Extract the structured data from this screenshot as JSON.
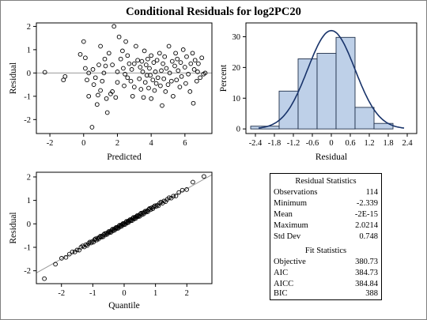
{
  "title": "Conditional Residuals for log2PC20",
  "colors": {
    "hist_fill": "#bed0e8",
    "hist_stroke": "#1f2f4a",
    "curve": "#18336a",
    "ref_line": "#999999"
  },
  "chart_data": [
    {
      "type": "scatter",
      "xlabel": "Predicted",
      "ylabel": "Residual",
      "xlim": [
        -2.8,
        7.6
      ],
      "ylim": [
        -2.6,
        2.15
      ],
      "xticks": [
        "-2",
        "0",
        "2",
        "4",
        "6"
      ],
      "yticks": [
        "-2",
        "-1",
        "0",
        "1",
        "2"
      ],
      "reference_line_y": 0,
      "points": [
        [
          -2.3,
          0.03
        ],
        [
          -1.2,
          -0.3
        ],
        [
          -1.1,
          -0.15
        ],
        [
          -0.2,
          0.8
        ],
        [
          0.0,
          1.35
        ],
        [
          0.1,
          0.65
        ],
        [
          0.1,
          0.2
        ],
        [
          0.2,
          -0.3
        ],
        [
          0.3,
          0.0
        ],
        [
          0.3,
          -1.0
        ],
        [
          0.5,
          -2.33
        ],
        [
          0.55,
          0.15
        ],
        [
          0.6,
          -0.5
        ],
        [
          0.7,
          -0.2
        ],
        [
          0.8,
          -1.35
        ],
        [
          0.85,
          -0.95
        ],
        [
          0.9,
          0.35
        ],
        [
          1.0,
          1.15
        ],
        [
          1.0,
          -0.75
        ],
        [
          1.1,
          -0.35
        ],
        [
          1.2,
          0.0
        ],
        [
          1.3,
          0.3
        ],
        [
          1.35,
          -1.1
        ],
        [
          1.4,
          -1.7
        ],
        [
          1.5,
          0.85
        ],
        [
          1.6,
          -0.9
        ],
        [
          1.7,
          -0.8
        ],
        [
          1.7,
          0.35
        ],
        [
          1.8,
          2.0
        ],
        [
          1.9,
          -1.05
        ],
        [
          2.0,
          0.05
        ],
        [
          2.0,
          -0.4
        ],
        [
          2.1,
          1.55
        ],
        [
          2.2,
          0.6
        ],
        [
          2.3,
          0.95
        ],
        [
          2.35,
          0.2
        ],
        [
          2.4,
          -0.55
        ],
        [
          2.5,
          1.35
        ],
        [
          2.6,
          -0.2
        ],
        [
          2.6,
          0.75
        ],
        [
          2.7,
          0.4
        ],
        [
          2.8,
          -0.35
        ],
        [
          2.85,
          0.15
        ],
        [
          2.9,
          -1.0
        ],
        [
          3.0,
          0.4
        ],
        [
          3.0,
          -0.6
        ],
        [
          3.1,
          1.15
        ],
        [
          3.2,
          0.55
        ],
        [
          3.3,
          -0.25
        ],
        [
          3.35,
          0.25
        ],
        [
          3.4,
          -0.7
        ],
        [
          3.45,
          0.5
        ],
        [
          3.5,
          0.05
        ],
        [
          3.55,
          -1.05
        ],
        [
          3.6,
          0.95
        ],
        [
          3.65,
          -0.4
        ],
        [
          3.7,
          0.35
        ],
        [
          3.75,
          -0.1
        ],
        [
          3.8,
          0.6
        ],
        [
          3.85,
          -0.65
        ],
        [
          3.9,
          0.2
        ],
        [
          4.0,
          -1.1
        ],
        [
          4.0,
          0.75
        ],
        [
          4.1,
          -0.3
        ],
        [
          4.15,
          0.45
        ],
        [
          4.2,
          -0.75
        ],
        [
          4.25,
          0.05
        ],
        [
          4.3,
          -0.45
        ],
        [
          4.35,
          0.55
        ],
        [
          4.4,
          -0.2
        ],
        [
          4.5,
          0.85
        ],
        [
          4.55,
          -0.55
        ],
        [
          4.6,
          0.1
        ],
        [
          4.65,
          -1.4
        ],
        [
          4.7,
          0.4
        ],
        [
          4.75,
          -0.25
        ],
        [
          4.8,
          0.7
        ],
        [
          4.85,
          -0.8
        ],
        [
          4.9,
          0.2
        ],
        [
          5.0,
          -0.5
        ],
        [
          5.05,
          1.15
        ],
        [
          5.1,
          0.0
        ],
        [
          5.2,
          -0.35
        ],
        [
          5.25,
          0.5
        ],
        [
          5.3,
          -1.0
        ],
        [
          5.4,
          0.3
        ],
        [
          5.45,
          0.85
        ],
        [
          5.5,
          -0.3
        ],
        [
          5.6,
          0.1
        ],
        [
          5.7,
          -0.6
        ],
        [
          5.75,
          0.45
        ],
        [
          5.8,
          -0.15
        ],
        [
          5.9,
          1.0
        ],
        [
          6.0,
          0.25
        ],
        [
          6.05,
          -0.45
        ],
        [
          6.1,
          0.7
        ],
        [
          6.2,
          -0.05
        ],
        [
          6.3,
          -0.8
        ],
        [
          6.35,
          0.4
        ],
        [
          6.45,
          0.85
        ],
        [
          6.5,
          -1.3
        ],
        [
          6.55,
          0.15
        ],
        [
          6.6,
          0.55
        ],
        [
          6.7,
          -0.35
        ],
        [
          6.75,
          0.05
        ],
        [
          6.8,
          0.4
        ],
        [
          6.9,
          -0.2
        ],
        [
          7.0,
          0.65
        ],
        [
          7.1,
          -0.05
        ],
        [
          7.2,
          0.0
        ],
        [
          1.25,
          0.6
        ],
        [
          2.45,
          -0.05
        ],
        [
          3.95,
          -0.1
        ],
        [
          5.55,
          0.6
        ]
      ]
    },
    {
      "type": "bar",
      "xlabel": "Residual",
      "ylabel": "Percent",
      "xlim": [
        -2.7,
        2.7
      ],
      "ylim": [
        -1.5,
        34.5
      ],
      "xticks": [
        "-2.4",
        "-1.8",
        "-1.2",
        "-0.6",
        "0",
        "0.6",
        "1.2",
        "1.8",
        "2.4"
      ],
      "xtick_values": [
        -2.4,
        -1.8,
        -1.2,
        -0.6,
        0,
        0.6,
        1.2,
        1.8,
        2.4
      ],
      "yticks": [
        "0",
        "10",
        "20",
        "30"
      ],
      "ytick_values": [
        0,
        10,
        20,
        30
      ],
      "bin_edges": [
        -2.55,
        -1.65,
        -1.05,
        -0.45,
        0.15,
        0.75,
        1.35,
        1.95
      ],
      "values": [
        0.9,
        12.3,
        22.8,
        24.6,
        29.8,
        7.0,
        1.8
      ],
      "curve": {
        "type": "normal",
        "mean": 0,
        "std": 0.748,
        "peak_percent": 32.0
      }
    },
    {
      "type": "scatter",
      "xlabel": "Quantile",
      "ylabel": "Residual",
      "xlim": [
        -2.8,
        2.8
      ],
      "ylim": [
        -2.55,
        2.2
      ],
      "xticks": [
        "-2",
        "-1",
        "0",
        "1",
        "2"
      ],
      "yticks": [
        "-2",
        "-1",
        "0",
        "1",
        "2"
      ],
      "reference_line": {
        "slope": 0.748,
        "intercept": 0
      },
      "n": 114,
      "ordered_residuals_tail_low": [
        -2.339
      ],
      "ordered_residuals_tail_high": [
        2.0214
      ]
    }
  ],
  "residual_statistics": {
    "heading": "Residual Statistics",
    "rows": [
      {
        "label": "Observations",
        "value": "114"
      },
      {
        "label": "Minimum",
        "value": "-2.339"
      },
      {
        "label": "Mean",
        "value": "-2E-15"
      },
      {
        "label": "Maximum",
        "value": "2.0214"
      },
      {
        "label": "Std Dev",
        "value": "0.748"
      }
    ]
  },
  "fit_statistics": {
    "heading": "Fit Statistics",
    "rows": [
      {
        "label": "Objective",
        "value": "380.73"
      },
      {
        "label": "AIC",
        "value": "384.73"
      },
      {
        "label": "AICC",
        "value": "384.84"
      },
      {
        "label": "BIC",
        "value": "388"
      }
    ]
  }
}
